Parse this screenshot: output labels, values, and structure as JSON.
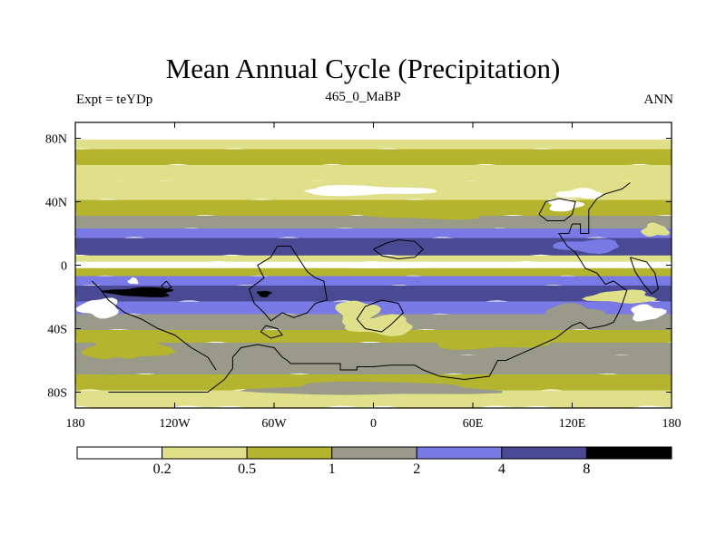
{
  "chart_data": {
    "type": "heatmap",
    "title": "Mean Annual Cycle (Precipitation)",
    "left_label": "Expt = teYDp",
    "center_label": "465_0_MaBP",
    "right_label": "ANN",
    "x_ticks": [
      "180",
      "120W",
      "60W",
      "0",
      "60E",
      "120E",
      "180"
    ],
    "x_range": [
      -180,
      180
    ],
    "y_ticks": [
      "80N",
      "40N",
      "0",
      "40S",
      "80S"
    ],
    "y_range": [
      -90,
      90
    ],
    "levels": [
      "0.2",
      "0.5",
      "1",
      "2",
      "4",
      "8"
    ],
    "level_colors": [
      "#ffffff",
      "#e0e08a",
      "#b4b42e",
      "#9a9a8a",
      "#7a7ae6",
      "#4a4a94",
      "#000000"
    ],
    "bands": [
      {
        "lat": [
          78,
          90
        ],
        "level": 0
      },
      {
        "lat": [
          72,
          78
        ],
        "level": 1
      },
      {
        "lat": [
          62,
          72
        ],
        "level": 2
      },
      {
        "lat": [
          52,
          62
        ],
        "level": 1
      },
      {
        "lat": [
          40,
          52
        ],
        "level": 1
      },
      {
        "lat": [
          30,
          40
        ],
        "level": 2
      },
      {
        "lat": [
          22,
          30
        ],
        "level": 3
      },
      {
        "lat": [
          16,
          22
        ],
        "level": 4
      },
      {
        "lat": [
          5,
          16
        ],
        "level": 5
      },
      {
        "lat": [
          1,
          5
        ],
        "level": 1
      },
      {
        "lat": [
          -3,
          1
        ],
        "level": 0
      },
      {
        "lat": [
          -8,
          -3
        ],
        "level": 2
      },
      {
        "lat": [
          -14,
          -8
        ],
        "level": 4
      },
      {
        "lat": [
          -24,
          -14
        ],
        "level": 5
      },
      {
        "lat": [
          -32,
          -24
        ],
        "level": 4
      },
      {
        "lat": [
          -42,
          -32
        ],
        "level": 3
      },
      {
        "lat": [
          -50,
          -42
        ],
        "level": 2
      },
      {
        "lat": [
          -58,
          -50
        ],
        "level": 3
      },
      {
        "lat": [
          -70,
          -58
        ],
        "level": 3
      },
      {
        "lat": [
          -80,
          -70
        ],
        "level": 2
      },
      {
        "lat": [
          -90,
          -80
        ],
        "level": 1
      }
    ],
    "blobs": [
      {
        "lon": -5,
        "lat": 47,
        "rlon": 40,
        "rlat": 3,
        "level": 0
      },
      {
        "lon": 125,
        "lat": 45,
        "rlon": 14,
        "rlat": 3,
        "level": 0
      },
      {
        "lon": -130,
        "lat": 38,
        "rlon": 45,
        "rlat": 3,
        "level": 2
      },
      {
        "lon": 30,
        "lat": 33,
        "rlon": 40,
        "rlat": 4,
        "level": 2
      },
      {
        "lon": 115,
        "lat": 38,
        "rlon": 10,
        "rlat": 4,
        "level": 0
      },
      {
        "lon": 20,
        "lat": 0,
        "rlon": 40,
        "rlat": 2,
        "level": 0
      },
      {
        "lon": -140,
        "lat": -17,
        "rlon": 20,
        "rlat": 3,
        "level": 6
      },
      {
        "lon": -145,
        "lat": -10,
        "rlon": 3,
        "rlat": 2,
        "level": 0
      },
      {
        "lon": -66,
        "lat": -18,
        "rlon": 4,
        "rlat": 2,
        "level": 6
      },
      {
        "lon": -10,
        "lat": -30,
        "rlon": 12,
        "rlat": 8,
        "level": 1
      },
      {
        "lon": 5,
        "lat": -38,
        "rlon": 20,
        "rlat": 6,
        "level": 1
      },
      {
        "lon": -165,
        "lat": -27,
        "rlon": 12,
        "rlat": 6,
        "level": 0
      },
      {
        "lon": -150,
        "lat": -52,
        "rlon": 25,
        "rlat": 8,
        "level": 2
      },
      {
        "lon": -160,
        "lat": -63,
        "rlon": 15,
        "rlat": 5,
        "level": 3
      },
      {
        "lon": 70,
        "lat": -48,
        "rlon": 35,
        "rlat": 5,
        "level": 2
      },
      {
        "lon": 150,
        "lat": -20,
        "rlon": 20,
        "rlat": 4,
        "level": 1
      },
      {
        "lon": 165,
        "lat": -30,
        "rlon": 10,
        "rlat": 5,
        "level": 0
      },
      {
        "lon": 130,
        "lat": 12,
        "rlon": 20,
        "rlat": 4,
        "level": 4
      },
      {
        "lon": 170,
        "lat": 22,
        "rlon": 8,
        "rlat": 4,
        "level": 1
      },
      {
        "lon": 120,
        "lat": -30,
        "rlon": 18,
        "rlat": 5,
        "level": 3
      },
      {
        "lon": -40,
        "lat": -55,
        "rlon": 20,
        "rlat": 4,
        "level": 3
      },
      {
        "lon": 0,
        "lat": -78,
        "rlon": 70,
        "rlat": 4,
        "level": 3
      }
    ],
    "coastlines": [
      [
        [
          -100,
          -80
        ],
        [
          -95,
          -76
        ],
        [
          -90,
          -72
        ],
        [
          -85,
          -65
        ],
        [
          -85,
          -58
        ],
        [
          -80,
          -52
        ],
        [
          -70,
          -50
        ],
        [
          -60,
          -52
        ],
        [
          -55,
          -58
        ],
        [
          -52,
          -60
        ],
        [
          -50,
          -62
        ],
        [
          -45,
          -62
        ],
        [
          -30,
          -62
        ],
        [
          -20,
          -62
        ],
        [
          -20,
          -66
        ],
        [
          -10,
          -66
        ],
        [
          -10,
          -64
        ],
        [
          0,
          -64
        ],
        [
          10,
          -63
        ],
        [
          25,
          -63
        ],
        [
          30,
          -66
        ],
        [
          40,
          -70
        ],
        [
          55,
          -72
        ],
        [
          70,
          -70
        ],
        [
          75,
          -60
        ],
        [
          80,
          -60
        ],
        [
          95,
          -53
        ],
        [
          110,
          -46
        ],
        [
          120,
          -38
        ],
        [
          125,
          -36
        ],
        [
          130,
          -40
        ],
        [
          140,
          -38
        ],
        [
          145,
          -36
        ],
        [
          148,
          -30
        ],
        [
          150,
          -25
        ],
        [
          153,
          -16
        ],
        [
          145,
          -10
        ],
        [
          140,
          -12
        ],
        [
          135,
          -5
        ],
        [
          128,
          -2
        ],
        [
          122,
          8
        ],
        [
          117,
          12
        ],
        [
          112,
          20
        ],
        [
          118,
          20
        ],
        [
          120,
          26
        ],
        [
          125,
          26
        ],
        [
          125,
          20
        ],
        [
          130,
          20
        ],
        [
          130,
          35
        ],
        [
          135,
          42
        ],
        [
          140,
          45
        ],
        [
          150,
          48
        ],
        [
          155,
          52
        ]
      ],
      [
        [
          -100,
          -80
        ],
        [
          -130,
          -80
        ],
        [
          -160,
          -80
        ]
      ],
      [
        [
          -170,
          -10
        ],
        [
          -165,
          -15
        ],
        [
          -160,
          -22
        ],
        [
          -150,
          -30
        ],
        [
          -140,
          -34
        ],
        [
          -130,
          -40
        ],
        [
          -120,
          -44
        ],
        [
          -110,
          -52
        ],
        [
          -100,
          -58
        ],
        [
          -95,
          -66
        ]
      ],
      [
        [
          -50,
          12
        ],
        [
          -45,
          4
        ],
        [
          -40,
          -4
        ],
        [
          -35,
          -8
        ],
        [
          -30,
          -10
        ],
        [
          -28,
          -22
        ],
        [
          -35,
          -24
        ],
        [
          -40,
          -30
        ],
        [
          -48,
          -33
        ],
        [
          -55,
          -30
        ],
        [
          -62,
          -35
        ],
        [
          -66,
          -30
        ],
        [
          -72,
          -24
        ],
        [
          -75,
          -15
        ],
        [
          -66,
          -8
        ],
        [
          -70,
          0
        ],
        [
          -62,
          5
        ],
        [
          -58,
          12
        ],
        [
          -50,
          12
        ]
      ],
      [
        [
          -5,
          -26
        ],
        [
          5,
          -22
        ],
        [
          15,
          -24
        ],
        [
          18,
          -30
        ],
        [
          10,
          -38
        ],
        [
          5,
          -42
        ],
        [
          -5,
          -40
        ],
        [
          -10,
          -34
        ],
        [
          -5,
          -26
        ]
      ],
      [
        [
          0,
          10
        ],
        [
          8,
          14
        ],
        [
          15,
          16
        ],
        [
          25,
          15
        ],
        [
          30,
          10
        ],
        [
          25,
          5
        ],
        [
          15,
          4
        ],
        [
          5,
          6
        ],
        [
          0,
          10
        ]
      ],
      [
        [
          100,
          32
        ],
        [
          105,
          28
        ],
        [
          115,
          28
        ],
        [
          120,
          32
        ],
        [
          122,
          40
        ],
        [
          112,
          42
        ],
        [
          104,
          40
        ],
        [
          100,
          32
        ]
      ],
      [
        [
          155,
          5
        ],
        [
          165,
          2
        ],
        [
          170,
          -5
        ],
        [
          172,
          -15
        ],
        [
          168,
          -18
        ],
        [
          163,
          -12
        ],
        [
          158,
          -4
        ],
        [
          155,
          5
        ]
      ],
      [
        [
          -65,
          -38
        ],
        [
          -58,
          -40
        ],
        [
          -55,
          -44
        ],
        [
          -62,
          -46
        ],
        [
          -68,
          -42
        ],
        [
          -65,
          -38
        ]
      ],
      [
        [
          -125,
          -10
        ],
        [
          -122,
          -14
        ],
        [
          -126,
          -16
        ],
        [
          -128,
          -13
        ],
        [
          -125,
          -10
        ]
      ]
    ]
  }
}
